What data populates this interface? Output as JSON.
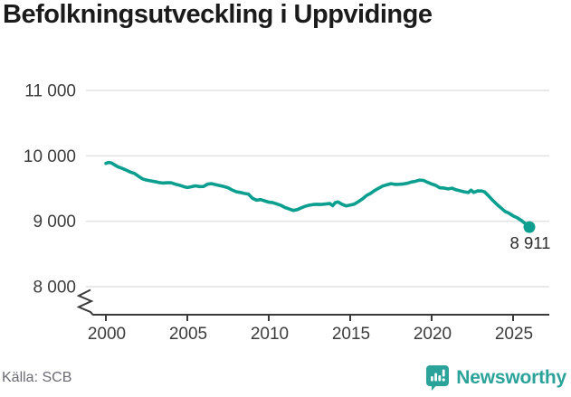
{
  "title": "Befolkningsutveckling i Uppvidinge",
  "source": "Källa: SCB",
  "brand": {
    "name": "Newsworthy",
    "color": "#2ba39b",
    "icon": "speech-bubble-bar-chart-icon"
  },
  "colors": {
    "line": "#0c9f90",
    "grid": "#e2e2e2",
    "axis": "#3a3a3a",
    "tick_text": "#3c3c3c",
    "end_label_text": "#2b2b2b",
    "title_text": "#1b1b1b",
    "source_text": "#6b6b73"
  },
  "end_label": "8 911",
  "chart_data": {
    "type": "line",
    "title": "Befolkningsutveckling i Uppvidinge",
    "xlabel": "",
    "ylabel": "",
    "grid": "horizontal",
    "legend": "none",
    "axis_break_at_bottom_left": true,
    "x_ticks": [
      2000,
      2005,
      2010,
      2015,
      2020,
      2025
    ],
    "y_ticks": [
      {
        "value": 8000,
        "label": "8 000"
      },
      {
        "value": 9000,
        "label": "9 000"
      },
      {
        "value": 10000,
        "label": "10 000"
      },
      {
        "value": 11000,
        "label": "11 000"
      }
    ],
    "xlim": [
      1998.8,
      2027.5
    ],
    "ylim_shown": [
      8000,
      11000
    ],
    "series": [
      {
        "name": "Befolkning",
        "end_value": 8911,
        "end_value_label": "8 911",
        "points": [
          [
            2000.0,
            9885
          ],
          [
            2000.17,
            9900
          ],
          [
            2000.33,
            9893
          ],
          [
            2000.5,
            9868
          ],
          [
            2000.75,
            9830
          ],
          [
            2001.0,
            9808
          ],
          [
            2001.25,
            9782
          ],
          [
            2001.5,
            9752
          ],
          [
            2001.75,
            9732
          ],
          [
            2002.0,
            9688
          ],
          [
            2002.25,
            9648
          ],
          [
            2002.5,
            9630
          ],
          [
            2002.75,
            9617
          ],
          [
            2003.0,
            9606
          ],
          [
            2003.25,
            9592
          ],
          [
            2003.5,
            9584
          ],
          [
            2003.75,
            9589
          ],
          [
            2004.0,
            9589
          ],
          [
            2004.25,
            9568
          ],
          [
            2004.5,
            9553
          ],
          [
            2004.75,
            9532
          ],
          [
            2005.0,
            9515
          ],
          [
            2005.25,
            9528
          ],
          [
            2005.5,
            9542
          ],
          [
            2005.75,
            9530
          ],
          [
            2006.0,
            9532
          ],
          [
            2006.25,
            9568
          ],
          [
            2006.5,
            9574
          ],
          [
            2006.75,
            9560
          ],
          [
            2007.0,
            9546
          ],
          [
            2007.25,
            9530
          ],
          [
            2007.5,
            9512
          ],
          [
            2007.75,
            9478
          ],
          [
            2008.0,
            9452
          ],
          [
            2008.25,
            9440
          ],
          [
            2008.5,
            9426
          ],
          [
            2008.75,
            9415
          ],
          [
            2009.0,
            9352
          ],
          [
            2009.25,
            9322
          ],
          [
            2009.5,
            9331
          ],
          [
            2009.75,
            9312
          ],
          [
            2010.0,
            9291
          ],
          [
            2010.25,
            9284
          ],
          [
            2010.5,
            9264
          ],
          [
            2010.75,
            9243
          ],
          [
            2011.0,
            9210
          ],
          [
            2011.25,
            9188
          ],
          [
            2011.5,
            9165
          ],
          [
            2011.75,
            9178
          ],
          [
            2012.0,
            9206
          ],
          [
            2012.25,
            9230
          ],
          [
            2012.5,
            9246
          ],
          [
            2012.75,
            9257
          ],
          [
            2013.0,
            9260
          ],
          [
            2013.25,
            9257
          ],
          [
            2013.5,
            9263
          ],
          [
            2013.75,
            9270
          ],
          [
            2013.92,
            9237
          ],
          [
            2014.08,
            9285
          ],
          [
            2014.25,
            9295
          ],
          [
            2014.5,
            9260
          ],
          [
            2014.75,
            9235
          ],
          [
            2015.0,
            9249
          ],
          [
            2015.25,
            9262
          ],
          [
            2015.5,
            9300
          ],
          [
            2015.75,
            9341
          ],
          [
            2016.0,
            9394
          ],
          [
            2016.25,
            9425
          ],
          [
            2016.5,
            9469
          ],
          [
            2016.75,
            9506
          ],
          [
            2017.0,
            9539
          ],
          [
            2017.25,
            9556
          ],
          [
            2017.5,
            9574
          ],
          [
            2017.75,
            9563
          ],
          [
            2018.0,
            9565
          ],
          [
            2018.25,
            9571
          ],
          [
            2018.5,
            9580
          ],
          [
            2018.75,
            9599
          ],
          [
            2019.0,
            9611
          ],
          [
            2019.25,
            9629
          ],
          [
            2019.5,
            9624
          ],
          [
            2019.75,
            9596
          ],
          [
            2020.0,
            9570
          ],
          [
            2020.25,
            9549
          ],
          [
            2020.5,
            9511
          ],
          [
            2020.75,
            9508
          ],
          [
            2021.0,
            9494
          ],
          [
            2021.25,
            9505
          ],
          [
            2021.5,
            9481
          ],
          [
            2021.75,
            9466
          ],
          [
            2022.0,
            9450
          ],
          [
            2022.25,
            9439
          ],
          [
            2022.42,
            9477
          ],
          [
            2022.58,
            9440
          ],
          [
            2022.83,
            9464
          ],
          [
            2023.08,
            9463
          ],
          [
            2023.25,
            9449
          ],
          [
            2023.5,
            9386
          ],
          [
            2023.75,
            9320
          ],
          [
            2024.0,
            9259
          ],
          [
            2024.25,
            9205
          ],
          [
            2024.5,
            9151
          ],
          [
            2024.75,
            9122
          ],
          [
            2025.0,
            9083
          ],
          [
            2025.25,
            9054
          ],
          [
            2025.5,
            9014
          ],
          [
            2025.75,
            8963
          ],
          [
            2026.0,
            8911
          ]
        ]
      }
    ]
  }
}
